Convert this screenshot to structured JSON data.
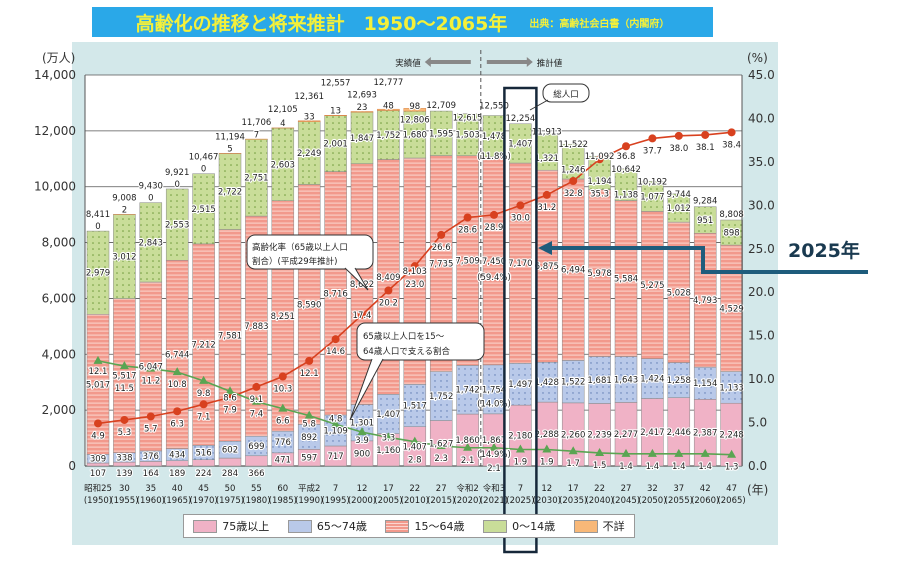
{
  "header": {
    "title": "高齢化の推移と将来推計　1950〜2065年",
    "source": "出典：高齢社会白書（内閣府）"
  },
  "annotations": {
    "actual_label": "実績値",
    "projected_label": "推計値",
    "total_callout": "総人口",
    "aging_rate_callout_1": "高齢化率（65歳以上人口",
    "aging_rate_callout_2": "割合）(平成29年推計)",
    "support_callout_1": "65歳以上人口を15〜",
    "support_callout_2": "64歳人口で支える割合",
    "highlight_label": "2025年",
    "pct_2021": {
      "age0_14": "(11.8%)",
      "age15_64": "(59.4%)",
      "age65_74": "(14.0%)",
      "age75plus": "(14.9%)"
    }
  },
  "colors": {
    "age75plus": "#f0b2c6",
    "age65_74": "#b9c9e9",
    "age15_64": "#f2998c",
    "age0_14": "#c9dd99",
    "unknown": "#f8b878",
    "aging_rate_line": "#d8411f",
    "support_line": "#5aa552",
    "highlight": "#16283a",
    "title_bg": "#2aa8e8",
    "title_text": "#f4f03a"
  },
  "chart_data": {
    "type": "bar",
    "stacked": true,
    "ylabel": "(万人)",
    "ylabel_right": "(%)",
    "xunit": "(年)",
    "ylim": [
      0,
      14000
    ],
    "ylim_right": [
      0,
      45
    ],
    "yticks": [
      "0",
      "2,000",
      "4,000",
      "6,000",
      "8,000",
      "10,000",
      "12,000",
      "14,000"
    ],
    "yticks_right": [
      "0.0",
      "5.0",
      "10.0",
      "15.0",
      "20.0",
      "25.0",
      "30.0",
      "35.0",
      "40.0",
      "45.0"
    ],
    "grid": true,
    "legend_position": "bottom",
    "categories": [
      [
        "昭和25",
        "(1950)"
      ],
      [
        "30",
        "(1955)"
      ],
      [
        "35",
        "(1960)"
      ],
      [
        "40",
        "(1965)"
      ],
      [
        "45",
        "(1970)"
      ],
      [
        "50",
        "(1975)"
      ],
      [
        "55",
        "(1980)"
      ],
      [
        "60",
        "(1985)"
      ],
      [
        "平成2",
        "(1990)"
      ],
      [
        "7",
        "(1995)"
      ],
      [
        "12",
        "(2000)"
      ],
      [
        "17",
        "(2005)"
      ],
      [
        "22",
        "(2010)"
      ],
      [
        "27",
        "(2015)"
      ],
      [
        "令和2",
        "(2020)"
      ],
      [
        "令和3",
        "(2021)"
      ],
      [
        "7",
        "(2025)"
      ],
      [
        "12",
        "(2030)"
      ],
      [
        "17",
        "(2035)"
      ],
      [
        "22",
        "(2040)"
      ],
      [
        "27",
        "(2045)"
      ],
      [
        "32",
        "(2050)"
      ],
      [
        "37",
        "(2055)"
      ],
      [
        "42",
        "(2060)"
      ],
      [
        "47",
        "(2065)"
      ]
    ],
    "highlight_category": "(2025)",
    "projection_starts_after": "(2020)",
    "series": [
      {
        "name": "75歳以上",
        "values": [
          107,
          139,
          164,
          189,
          224,
          284,
          366,
          471,
          597,
          717,
          900,
          1160,
          1407,
          1627,
          1860,
          1867,
          2180,
          2288,
          2260,
          2239,
          2277,
          2417,
          2446,
          2387,
          2248
        ]
      },
      {
        "name": "65〜74歳",
        "values": [
          309,
          338,
          376,
          434,
          516,
          602,
          699,
          776,
          892,
          1109,
          1301,
          1407,
          1517,
          1752,
          1742,
          1754,
          1497,
          1428,
          1522,
          1681,
          1643,
          1424,
          1258,
          1154,
          1133
        ]
      },
      {
        "name": "15〜64歳",
        "values": [
          5017,
          5517,
          6047,
          6744,
          7212,
          7581,
          7883,
          8251,
          8590,
          8716,
          8622,
          8409,
          8103,
          7735,
          7509,
          7450,
          7170,
          6875,
          6494,
          5978,
          5584,
          5275,
          5028,
          4793,
          4529
        ]
      },
      {
        "name": "0〜14歳",
        "values": [
          2979,
          3012,
          2843,
          2553,
          2515,
          2722,
          2751,
          2603,
          2249,
          2001,
          1847,
          1752,
          1680,
          1595,
          1503,
          1478,
          1407,
          1321,
          1246,
          1194,
          1138,
          1077,
          1012,
          951,
          898
        ]
      },
      {
        "name": "不詳",
        "values": [
          0,
          2,
          0,
          0,
          0,
          5,
          7,
          4,
          33,
          13,
          23,
          48,
          98,
          null,
          null,
          null,
          null,
          null,
          null,
          null,
          null,
          null,
          null,
          null,
          null
        ]
      }
    ],
    "totals": [
      8411,
      9008,
      9430,
      9921,
      10467,
      11194,
      11706,
      12105,
      12361,
      12557,
      12693,
      12777,
      12806,
      12709,
      12615,
      12550,
      12254,
      11913,
      11522,
      11092,
      10642,
      10192,
      9744,
      9284,
      8808
    ],
    "lines": [
      {
        "name": "高齢化率",
        "axis": "right",
        "values": [
          4.9,
          5.3,
          5.7,
          6.3,
          7.1,
          7.9,
          9.1,
          10.3,
          12.1,
          14.6,
          17.4,
          20.2,
          23.0,
          26.6,
          28.6,
          28.9,
          30.0,
          31.2,
          32.8,
          35.3,
          36.8,
          37.7,
          38.0,
          38.1,
          38.4
        ]
      },
      {
        "name": "65歳以上人口を15〜64歳人口で支える割合",
        "axis": "right",
        "values": [
          12.1,
          11.5,
          11.2,
          10.8,
          9.8,
          8.6,
          7.4,
          6.6,
          5.8,
          4.8,
          3.9,
          3.3,
          2.8,
          2.3,
          2.1,
          2.1,
          1.9,
          1.9,
          1.7,
          1.5,
          1.4,
          1.4,
          1.4,
          1.4,
          1.3
        ]
      }
    ]
  }
}
